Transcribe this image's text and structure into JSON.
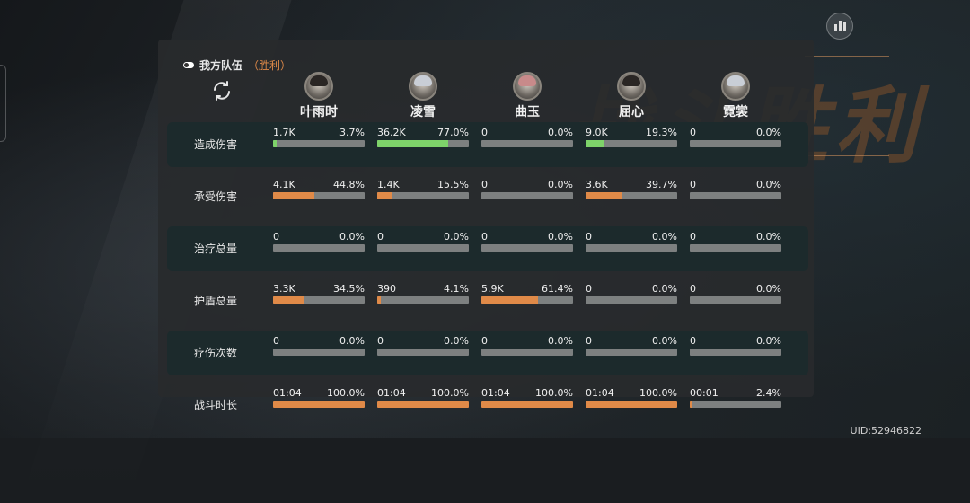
{
  "header": {
    "title": "我方队伍",
    "result": "（胜利）"
  },
  "uid": "UID:52946822",
  "colors": {
    "green": "#7ed36a",
    "orange": "#e08a48"
  },
  "characters": [
    {
      "name": "叶雨时",
      "avatar": "light-hair-none"
    },
    {
      "name": "凌雪",
      "avatar": "light"
    },
    {
      "name": "曲玉",
      "avatar": "pink"
    },
    {
      "name": "屈心",
      "avatar": "dark"
    },
    {
      "name": "霓裳",
      "avatar": "light"
    }
  ],
  "rows": [
    {
      "label": "造成伤害",
      "color": "#7ed36a",
      "dark": true,
      "cells": [
        {
          "value": "1.7K",
          "pct": "3.7%",
          "fill": 0.037
        },
        {
          "value": "36.2K",
          "pct": "77.0%",
          "fill": 0.77
        },
        {
          "value": "0",
          "pct": "0.0%",
          "fill": 0
        },
        {
          "value": "9.0K",
          "pct": "19.3%",
          "fill": 0.193
        },
        {
          "value": "0",
          "pct": "0.0%",
          "fill": 0
        }
      ]
    },
    {
      "label": "承受伤害",
      "color": "#e08a48",
      "dark": false,
      "cells": [
        {
          "value": "4.1K",
          "pct": "44.8%",
          "fill": 0.448
        },
        {
          "value": "1.4K",
          "pct": "15.5%",
          "fill": 0.155
        },
        {
          "value": "0",
          "pct": "0.0%",
          "fill": 0
        },
        {
          "value": "3.6K",
          "pct": "39.7%",
          "fill": 0.397
        },
        {
          "value": "0",
          "pct": "0.0%",
          "fill": 0
        }
      ]
    },
    {
      "label": "治疗总量",
      "color": "#7ed36a",
      "dark": true,
      "cells": [
        {
          "value": "0",
          "pct": "0.0%",
          "fill": 0
        },
        {
          "value": "0",
          "pct": "0.0%",
          "fill": 0
        },
        {
          "value": "0",
          "pct": "0.0%",
          "fill": 0
        },
        {
          "value": "0",
          "pct": "0.0%",
          "fill": 0
        },
        {
          "value": "0",
          "pct": "0.0%",
          "fill": 0
        }
      ]
    },
    {
      "label": "护盾总量",
      "color": "#e08a48",
      "dark": false,
      "cells": [
        {
          "value": "3.3K",
          "pct": "34.5%",
          "fill": 0.345
        },
        {
          "value": "390",
          "pct": "4.1%",
          "fill": 0.041
        },
        {
          "value": "5.9K",
          "pct": "61.4%",
          "fill": 0.614
        },
        {
          "value": "0",
          "pct": "0.0%",
          "fill": 0
        },
        {
          "value": "0",
          "pct": "0.0%",
          "fill": 0
        }
      ]
    },
    {
      "label": "疗伤次数",
      "color": "#7ed36a",
      "dark": true,
      "cells": [
        {
          "value": "0",
          "pct": "0.0%",
          "fill": 0
        },
        {
          "value": "0",
          "pct": "0.0%",
          "fill": 0
        },
        {
          "value": "0",
          "pct": "0.0%",
          "fill": 0
        },
        {
          "value": "0",
          "pct": "0.0%",
          "fill": 0
        },
        {
          "value": "0",
          "pct": "0.0%",
          "fill": 0
        }
      ]
    },
    {
      "label": "战斗时长",
      "color": "#e08a48",
      "dark": false,
      "cells": [
        {
          "value": "01:04",
          "pct": "100.0%",
          "fill": 1.0
        },
        {
          "value": "01:04",
          "pct": "100.0%",
          "fill": 1.0
        },
        {
          "value": "01:04",
          "pct": "100.0%",
          "fill": 1.0
        },
        {
          "value": "01:04",
          "pct": "100.0%",
          "fill": 1.0
        },
        {
          "value": "00:01",
          "pct": "2.4%",
          "fill": 0.024
        }
      ]
    }
  ]
}
